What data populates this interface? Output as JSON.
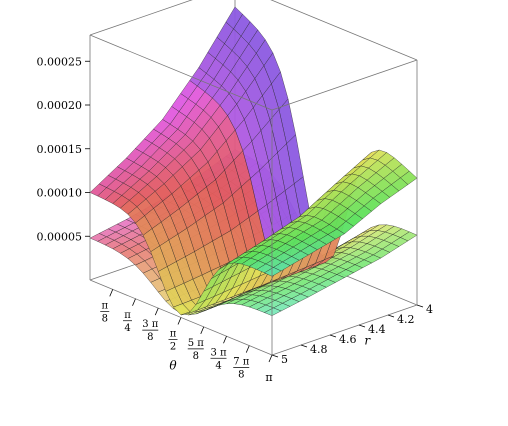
{
  "chart_data": {
    "type": "surface3d",
    "title": "",
    "xlabel": "θ",
    "ylabel": "r",
    "zlabel": "",
    "theta_range": [
      "0",
      "π"
    ],
    "r_range": [
      4,
      5
    ],
    "z_range": [
      0,
      0.00028
    ],
    "theta_ticks": [
      {
        "num": "π",
        "den": "8"
      },
      {
        "num": "π",
        "den": "4"
      },
      {
        "num": "3 π",
        "den": "8"
      },
      {
        "num": "π",
        "den": "2"
      },
      {
        "num": "5 π",
        "den": "8"
      },
      {
        "num": "3 π",
        "den": "4"
      },
      {
        "num": "7 π",
        "den": "8"
      },
      {
        "num": "π",
        "den": ""
      }
    ],
    "r_ticks": [
      "4",
      "4.2",
      "4.4",
      "4.6",
      "4.8",
      "5"
    ],
    "z_ticks": [
      "0.00005",
      "0.00010",
      "0.00015",
      "0.00020",
      "0.00025"
    ],
    "grid": false,
    "legend": "none",
    "series": [
      {
        "kind": "upper surface",
        "z_at_theta0": [
          0.000255,
          0.0002,
          0.000155,
          0.000125,
          0.0001
        ],
        "z_at_theta_pi": [
          0.000145,
          0.00013,
          0.00011,
          0.0001,
          9e-05
        ]
      },
      {
        "kind": "lower surface",
        "z_at_theta0": [
          9.2e-05,
          7.6e-05,
          6.4e-05,
          5.5e-05,
          4.8e-05
        ],
        "z_at_theta_pi": [
          8e-05,
          6.8e-05,
          6e-05,
          5.2e-05,
          4.5e-05
        ]
      }
    ]
  }
}
